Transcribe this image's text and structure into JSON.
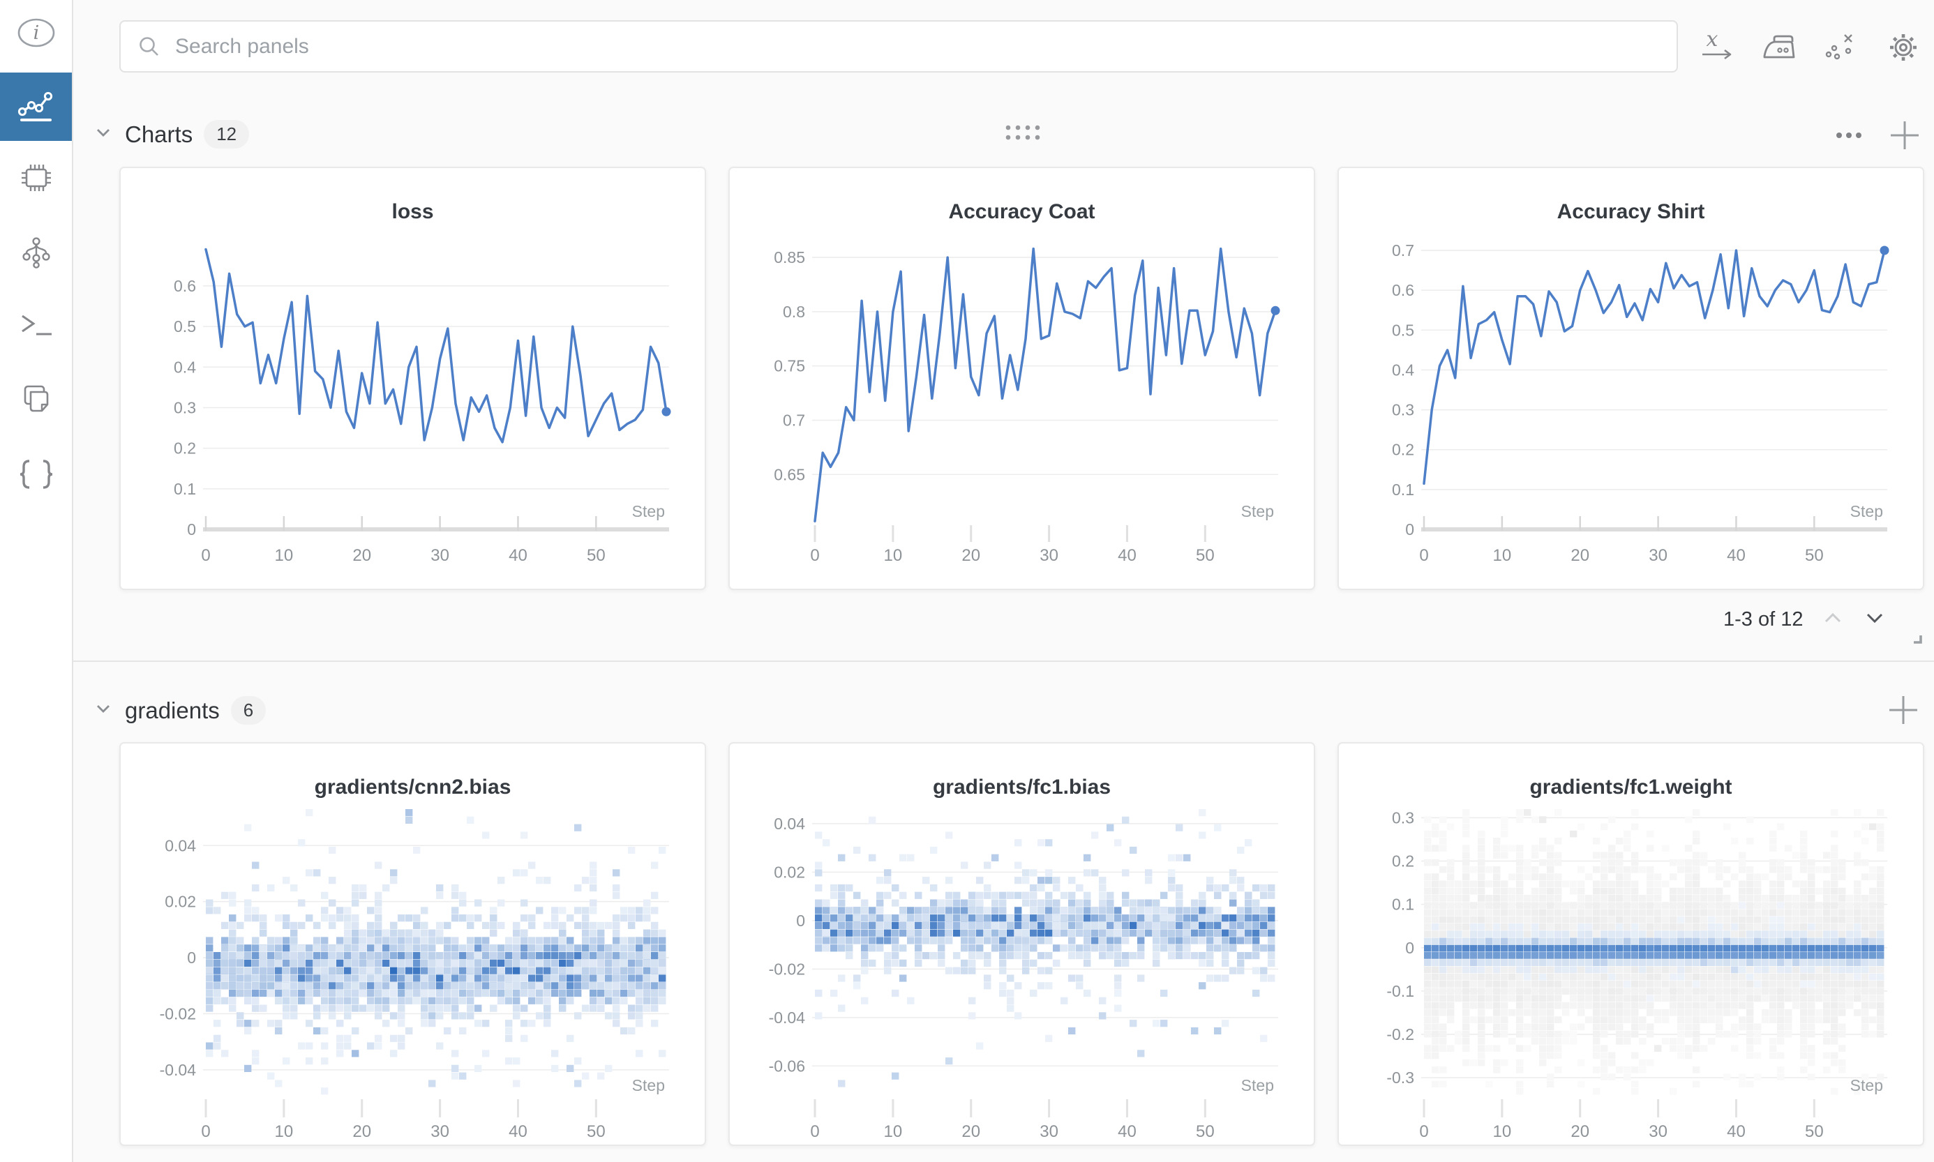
{
  "topbar": {
    "search_placeholder": "Search panels",
    "icons": [
      "x-axis-expression",
      "smoothing",
      "outliers",
      "settings"
    ]
  },
  "sidebar": {
    "items": [
      {
        "name": "info",
        "selected": false
      },
      {
        "name": "panels-workspace",
        "selected": true
      },
      {
        "name": "system",
        "selected": false
      },
      {
        "name": "model",
        "selected": false
      },
      {
        "name": "logs",
        "selected": false
      },
      {
        "name": "files",
        "selected": false
      },
      {
        "name": "artifacts-json",
        "selected": false
      }
    ]
  },
  "sections": [
    {
      "title": "Charts",
      "count": "12"
    },
    {
      "title": "gradients",
      "count": "6"
    }
  ],
  "pagination": {
    "label": "1-3 of 12"
  },
  "colors": {
    "accent": "#3a78ab",
    "line_blue": "#4d7ec8",
    "heat_blue": "#2e6cbe",
    "grid": "#ececec",
    "tick_text": "#8e9398",
    "axis_bar": "#dcdcdc"
  },
  "chart_data": [
    {
      "id": "loss",
      "type": "line",
      "title": "loss",
      "xlabel": "Step",
      "x_ticks": [
        0,
        10,
        20,
        30,
        40,
        50
      ],
      "y_ticks": [
        0.6,
        0.5,
        0.4,
        0.3,
        0.2,
        0.1,
        0
      ],
      "y_tick_labels": [
        "0.6",
        "0.5",
        "0.4",
        "0.3",
        "0.2",
        "0.1",
        "0"
      ],
      "v_top": 0.7253,
      "v_bottom": 0,
      "axis_zero_bar": true,
      "xlim": [
        0,
        59
      ],
      "ylim": [
        0,
        0.69
      ],
      "grid": true,
      "legend": "none",
      "values": [
        0.69,
        0.61,
        0.45,
        0.63,
        0.53,
        0.5,
        0.51,
        0.36,
        0.43,
        0.36,
        0.47,
        0.56,
        0.285,
        0.575,
        0.39,
        0.37,
        0.3,
        0.44,
        0.29,
        0.25,
        0.385,
        0.31,
        0.51,
        0.31,
        0.345,
        0.26,
        0.4,
        0.45,
        0.22,
        0.3,
        0.42,
        0.495,
        0.31,
        0.22,
        0.325,
        0.29,
        0.33,
        0.25,
        0.215,
        0.3,
        0.465,
        0.28,
        0.475,
        0.3,
        0.25,
        0.3,
        0.275,
        0.5,
        0.38,
        0.23,
        0.27,
        0.31,
        0.335,
        0.245,
        0.26,
        0.27,
        0.295,
        0.45,
        0.41,
        0.29
      ]
    },
    {
      "id": "accuracy_coat",
      "type": "line",
      "title": "Accuracy Coat",
      "xlabel": "Step",
      "x_ticks": [
        0,
        10,
        20,
        30,
        40,
        50
      ],
      "y_ticks": [
        0.85,
        0.8,
        0.75,
        0.7,
        0.65
      ],
      "y_tick_labels": [
        "0.85",
        "0.8",
        "0.75",
        "0.7",
        "0.65"
      ],
      "v_top": 0.8706,
      "v_bottom": 0.5994,
      "axis_zero_bar": false,
      "xlim": [
        0,
        59
      ],
      "ylim": [
        0.607,
        0.858
      ],
      "grid": true,
      "legend": "none",
      "values": [
        0.607,
        0.67,
        0.657,
        0.67,
        0.712,
        0.7,
        0.81,
        0.726,
        0.8,
        0.718,
        0.8,
        0.837,
        0.69,
        0.74,
        0.797,
        0.72,
        0.78,
        0.85,
        0.748,
        0.816,
        0.74,
        0.723,
        0.78,
        0.796,
        0.72,
        0.76,
        0.728,
        0.775,
        0.858,
        0.775,
        0.778,
        0.826,
        0.8,
        0.798,
        0.794,
        0.828,
        0.822,
        0.832,
        0.84,
        0.746,
        0.748,
        0.815,
        0.847,
        0.724,
        0.822,
        0.76,
        0.84,
        0.752,
        0.801,
        0.801,
        0.76,
        0.782,
        0.858,
        0.8,
        0.758,
        0.803,
        0.78,
        0.723,
        0.78,
        0.801
      ]
    },
    {
      "id": "accuracy_shirt",
      "type": "line",
      "title": "Accuracy Shirt",
      "xlabel": "Step",
      "x_ticks": [
        0,
        10,
        20,
        30,
        40,
        50
      ],
      "y_ticks": [
        0.7,
        0.6,
        0.5,
        0.4,
        0.3,
        0.2,
        0.1,
        0
      ],
      "y_tick_labels": [
        "0.7",
        "0.6",
        "0.5",
        "0.4",
        "0.3",
        "0.2",
        "0.1",
        "0"
      ],
      "v_top": 0.7385,
      "v_bottom": 0,
      "axis_zero_bar": true,
      "xlim": [
        0,
        59
      ],
      "ylim": [
        0.115,
        0.7
      ],
      "grid": true,
      "legend": "none",
      "values": [
        0.115,
        0.3,
        0.41,
        0.45,
        0.38,
        0.61,
        0.43,
        0.515,
        0.525,
        0.545,
        0.475,
        0.415,
        0.585,
        0.585,
        0.565,
        0.485,
        0.597,
        0.57,
        0.497,
        0.51,
        0.6,
        0.648,
        0.6,
        0.543,
        0.57,
        0.613,
        0.533,
        0.567,
        0.525,
        0.603,
        0.57,
        0.668,
        0.605,
        0.638,
        0.61,
        0.62,
        0.53,
        0.6,
        0.69,
        0.555,
        0.7,
        0.535,
        0.655,
        0.585,
        0.56,
        0.6,
        0.625,
        0.615,
        0.57,
        0.6,
        0.65,
        0.55,
        0.545,
        0.585,
        0.665,
        0.57,
        0.56,
        0.615,
        0.62,
        0.7
      ]
    },
    {
      "id": "gradients/cnn2.bias",
      "type": "heatmap",
      "title": "gradients/cnn2.bias",
      "xlabel": "Step",
      "x_ticks": [
        0,
        10,
        20,
        30,
        40,
        50
      ],
      "y_ticks": [
        0.04,
        0.02,
        0,
        -0.02,
        -0.04
      ],
      "y_tick_labels": [
        "0.04",
        "0.02",
        "0",
        "-0.02",
        "-0.04"
      ],
      "v_top": 0.053,
      "v_bottom": -0.049,
      "rows": 38,
      "cols": 60,
      "seed": 7,
      "xlim": [
        0,
        59
      ],
      "grid": true,
      "distribution_note": "estimated gradient-histogram density: dense band centered ~-0.004, spread ~±0.02, sparse outliers to ±0.05",
      "components": [
        {
          "mu": -0.004,
          "sigma": 0.0085,
          "fill": 1.35,
          "aMin": 0.18,
          "aMax": 1.0,
          "cLow": "#edf3fa",
          "cHigh": "#2e6cbe"
        },
        {
          "mu": -0.002,
          "sigma": 0.017,
          "fill": 0.55,
          "aMin": 0.08,
          "aMax": 0.42,
          "cLow": "#eef3fa",
          "cHigh": "#5b8ccb"
        }
      ],
      "outlier": {
        "prob": 0.015,
        "aMin": 0.12,
        "aMax": 0.4
      }
    },
    {
      "id": "gradients/fc1.bias",
      "type": "heatmap",
      "title": "gradients/fc1.bias",
      "xlabel": "Step",
      "x_ticks": [
        0,
        10,
        20,
        30,
        40,
        50
      ],
      "y_ticks": [
        0.04,
        0.02,
        0,
        -0.02,
        -0.04,
        -0.06
      ],
      "y_tick_labels": [
        "0.04",
        "0.02",
        "0",
        "-0.02",
        "-0.04",
        "-0.06"
      ],
      "v_top": 0.046,
      "v_bottom": -0.072,
      "rows": 38,
      "cols": 60,
      "seed": 11,
      "xlim": [
        0,
        59
      ],
      "grid": true,
      "distribution_note": "estimated density: band centered ~-0.002, spread ~±0.025, sparse outliers to -0.07/+0.045",
      "components": [
        {
          "mu": -0.002,
          "sigma": 0.0075,
          "fill": 1.1,
          "aMin": 0.2,
          "aMax": 1.0,
          "cLow": "#edf3fa",
          "cHigh": "#2e6cbe"
        },
        {
          "mu": -0.004,
          "sigma": 0.016,
          "fill": 0.5,
          "aMin": 0.08,
          "aMax": 0.4,
          "cLow": "#eef3fa",
          "cHigh": "#5b8ccb"
        }
      ],
      "outlier": {
        "prob": 0.018,
        "aMin": 0.1,
        "aMax": 0.35
      }
    },
    {
      "id": "gradients/fc1.weight",
      "type": "heatmap",
      "title": "gradients/fc1.weight",
      "xlabel": "Step",
      "x_ticks": [
        0,
        10,
        20,
        30,
        40,
        50
      ],
      "y_ticks": [
        0.3,
        0.2,
        0.1,
        0,
        -0.1,
        -0.2,
        -0.3
      ],
      "y_tick_labels": [
        "0.3",
        "0.2",
        "0.1",
        "0",
        "-0.1",
        "-0.2",
        "-0.3"
      ],
      "v_top": 0.32,
      "v_bottom": -0.34,
      "rows": 40,
      "cols": 60,
      "seed": 23,
      "xlim": [
        0,
        59
      ],
      "grid": true,
      "distribution_note": "estimated density: wide light-gray spread ~±0.27 with strong solid blue band at ~-0.01",
      "components": [
        {
          "mu": -0.01,
          "sigma": 0.14,
          "fill": 1.5,
          "aMin": 0.5,
          "aMax": 0.95,
          "cLow": "#fbfbfb",
          "cHigh": "#e9e9e9",
          "colJitter": true
        },
        {
          "mu": -0.008,
          "sigma": 0.03,
          "fill": 1.6,
          "aMin": 0.45,
          "aMax": 0.8,
          "cLow": "#f0f4fa",
          "cHigh": "#b9cfe9"
        },
        {
          "mu": -0.008,
          "sigma": 0.012,
          "fill": 2.0,
          "aMin": 0.85,
          "aMax": 1.0,
          "cLow": "#cddcf0",
          "cHigh": "#3d78c4"
        }
      ],
      "outlier": {
        "prob": 0.006,
        "aMin": 0.15,
        "aMax": 0.3,
        "gray": true
      }
    }
  ]
}
